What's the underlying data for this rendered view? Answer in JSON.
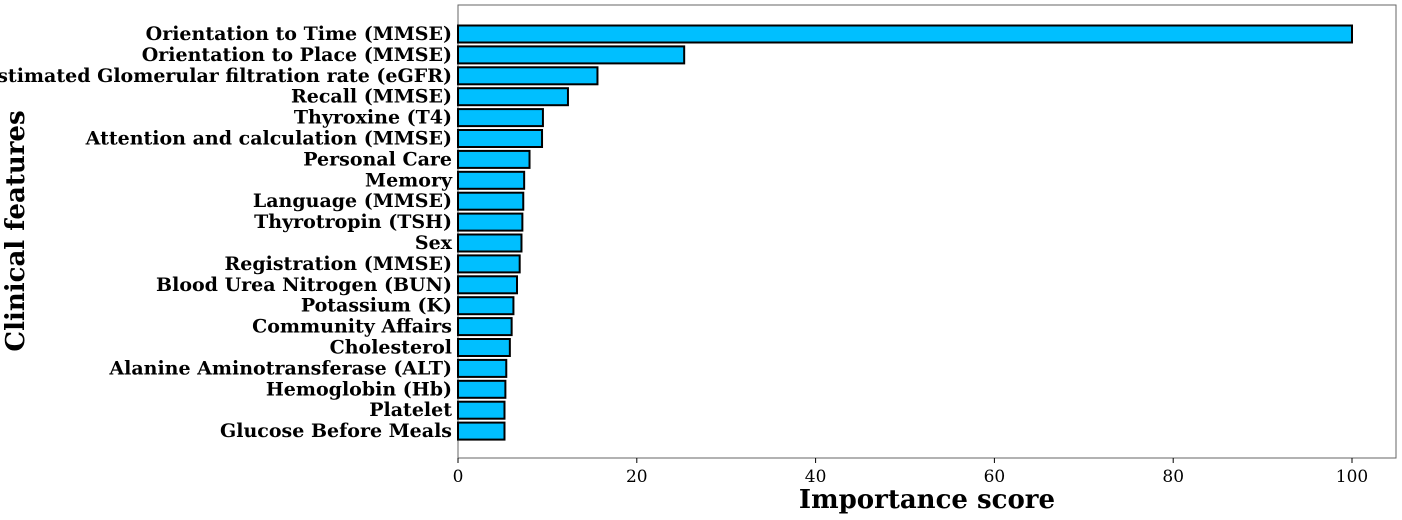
{
  "chart_data": {
    "type": "bar",
    "orientation": "horizontal",
    "xlabel": "Importance score",
    "ylabel": "Clinical features",
    "xlim": [
      0,
      105
    ],
    "xticks": [
      0,
      20,
      40,
      60,
      80,
      100
    ],
    "grid": false,
    "bar_color": "#00bfff",
    "bar_edge_color": "#000000",
    "categories": [
      "Orientation to Time (MMSE)",
      "Orientation to Place (MMSE)",
      "Estimated Glomerular filtration rate (eGFR)",
      "Recall (MMSE)",
      "Thyroxine (T4)",
      "Attention and calculation (MMSE)",
      "Personal Care",
      "Memory",
      "Language (MMSE)",
      "Thyrotropin (TSH)",
      "Sex",
      "Registration (MMSE)",
      "Blood Urea Nitrogen (BUN)",
      "Potassium (K)",
      "Community Affairs",
      "Cholesterol",
      "Alanine Aminotransferase (ALT)",
      "Hemoglobin (Hb)",
      "Platelet",
      "Glucose Before Meals"
    ],
    "values": [
      100,
      25.3,
      15.6,
      12.3,
      9.5,
      9.4,
      8.0,
      7.4,
      7.3,
      7.2,
      7.1,
      6.9,
      6.6,
      6.2,
      6.0,
      5.8,
      5.4,
      5.3,
      5.2,
      5.2
    ]
  }
}
